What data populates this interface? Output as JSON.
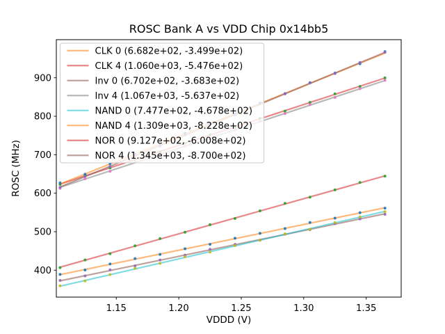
{
  "figure": {
    "background": "#ffffff",
    "frame_color": "#000000",
    "legend": {
      "background": "rgba(255,255,255,0.8)",
      "border_color": "#cccccc",
      "position": "upper-left"
    }
  },
  "chart_data": {
    "type": "scatter",
    "title": "ROSC Bank A vs VDD Chip 0x14bb5",
    "xlabel": "VDDD (V)",
    "ylabel": "ROSC (MHz)",
    "xlim": [
      1.102,
      1.378
    ],
    "ylim": [
      330,
      999
    ],
    "grid": false,
    "legend_position": "upper left",
    "xticks": [
      1.15,
      1.2,
      1.25,
      1.3,
      1.35
    ],
    "xtick_labels": [
      "1.15",
      "1.20",
      "1.25",
      "1.30",
      "1.35"
    ],
    "yticks": [
      400,
      500,
      600,
      700,
      800,
      900
    ],
    "ytick_labels": [
      "400",
      "500",
      "600",
      "700",
      "800",
      "900"
    ],
    "x": [
      1.105,
      1.125,
      1.145,
      1.165,
      1.185,
      1.205,
      1.225,
      1.245,
      1.265,
      1.285,
      1.305,
      1.325,
      1.345,
      1.365
    ],
    "series": [
      {
        "name": "CLK 0",
        "legend_label": "CLK 0 (6.682e+02, -3.499e+02)",
        "fit_slope": 668.2,
        "fit_intercept": -349.9,
        "line_color": "#ff7f0e",
        "dot_color": "#1f77b4",
        "y": [
          389.0,
          400.6,
          416.0,
          430.1,
          441.0,
          455.7,
          467.1,
          483.1,
          495.6,
          508.0,
          524.0,
          535.2,
          549.4,
          561.1
        ]
      },
      {
        "name": "CLK 4",
        "legend_label": "CLK 4 (1.060e+03, -5.476e+02)",
        "fit_slope": 1060.0,
        "fit_intercept": -547.6,
        "line_color": "#d62728",
        "dot_color": "#2ca02c",
        "y": [
          623.0,
          646.2,
          665.7,
          688.2,
          706.7,
          730.3,
          752.1,
          771.6,
          795.0,
          813.5,
          836.0,
          858.3,
          877.3,
          899.8
        ]
      },
      {
        "name": "Inv 0",
        "legend_label": "Inv 0 (6.702e+02, -3.683e+02)",
        "fit_slope": 670.2,
        "fit_intercept": -368.3,
        "line_color": "#8c564b",
        "dot_color": "#9467bd",
        "y": [
          373.4,
          385.1,
          400.9,
          411.2,
          426.6,
          439.1,
          454.2,
          467.0,
          477.8,
          493.3,
          505.4,
          520.9,
          533.2,
          545.1
        ]
      },
      {
        "name": "Inv 4",
        "legend_label": "Inv 4 (1.067e+03, -5.637e+02)",
        "fit_slope": 1067.0,
        "fit_intercept": -563.7,
        "line_color": "#7f7f7f",
        "dot_color": "#e377c2",
        "y": [
          612.8,
          637.5,
          656.9,
          681.0,
          700.4,
          723.0,
          741.9,
          764.9,
          787.0,
          806.8,
          830.5,
          848.9,
          871.8,
          893.5
        ]
      },
      {
        "name": "NAND 0",
        "legend_label": "NAND 0 (7.477e+02, -4.678e+02)",
        "fit_slope": 747.7,
        "fit_intercept": -467.8,
        "line_color": "#17becf",
        "dot_color": "#bcbd22",
        "y": [
          359.3,
          372.0,
          388.6,
          404.5,
          417.7,
          434.9,
          447.1,
          463.7,
          477.8,
          494.3,
          506.4,
          523.7,
          538.4,
          551.9
        ]
      },
      {
        "name": "NAND 4",
        "legend_label": "NAND 4 (1.309e+03, -8.228e+02)",
        "fit_slope": 1309.0,
        "fit_intercept": -822.8,
        "line_color": "#ff7f0e",
        "dot_color": "#1f77b4",
        "y": [
          627.0,
          649.3,
          677.0,
          701.0,
          729.1,
          756.1,
          779.9,
          807.2,
          834.2,
          858.9,
          887.4,
          912.2,
          936.5,
          968.0
        ]
      },
      {
        "name": "NOR 0",
        "legend_label": "NOR 0 (9.127e+02, -6.008e+02)",
        "fit_slope": 912.7,
        "fit_intercept": -600.8,
        "line_color": "#d62728",
        "dot_color": "#2ca02c",
        "y": [
          406.7,
          426.6,
          442.7,
          463.3,
          482.1,
          498.6,
          518.2,
          534.3,
          554.3,
          573.6,
          589.6,
          608.7,
          627.8,
          644.4
        ]
      },
      {
        "name": "NOR 4",
        "legend_label": "NOR 4 (1.345e+03, -8.700e+02)",
        "fit_slope": 1345.0,
        "fit_intercept": -870.0,
        "line_color": "#8c564b",
        "dot_color": "#9467bd",
        "y": [
          615.0,
          644.0,
          669.7,
          698.0,
          722.2,
          751.2,
          779.0,
          803.6,
          832.0,
          858.1,
          886.6,
          911.0,
          939.8,
          966.2
        ]
      }
    ]
  }
}
